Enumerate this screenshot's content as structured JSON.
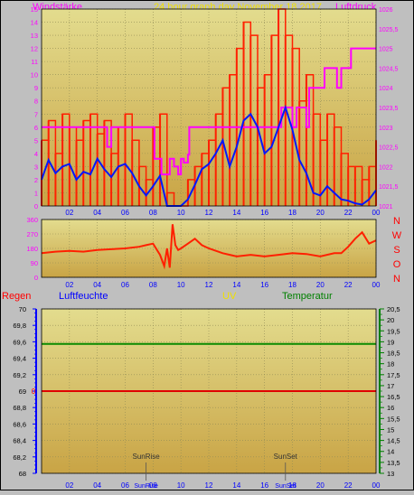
{
  "header": {
    "left_label": "Windstärke",
    "center_title": "24 hour graph day   November 18 2017",
    "right_label": "Luftdruck"
  },
  "colors": {
    "frame": "#000000",
    "plot_top": "#e3dc8e",
    "plot_bottom": "#c9a445",
    "grid": "#8f8a55",
    "wind": "#ff2000",
    "wind_avg": "#0018ff",
    "pressure": "#ff00ff",
    "direction": "#ff2000",
    "humidity_line": "#e00000",
    "temperature_line": "#0a8a00",
    "left_axis": "#0000ff",
    "right_axis": "#008000",
    "header_pink": "#ff00ff",
    "header_yellow": "#f0e000",
    "regen": "#ff0000",
    "luftfeuchte": "#0000ff",
    "uv": "#f0e000",
    "temperatur": "#008000"
  },
  "chart_data": [
    {
      "type": "line",
      "name": "wind-pressure",
      "x_ticks": [
        "02",
        "04",
        "06",
        "08",
        "10",
        "12",
        "14",
        "16",
        "18",
        "20",
        "22",
        "00"
      ],
      "x_range": [
        0,
        24
      ],
      "y_left_ticks": [
        "0",
        "1",
        "2",
        "3",
        "4",
        "5",
        "6",
        "7",
        "8",
        "9",
        "10",
        "11",
        "12",
        "13",
        "14",
        "15"
      ],
      "y_left_range": [
        0,
        15
      ],
      "y_right_ticks": [
        "1021",
        "1021,5",
        "1022",
        "1022,5",
        "1023",
        "1023,5",
        "1024",
        "1024,5",
        "1025",
        "1025,5",
        "1026"
      ],
      "y_right_range": [
        1021,
        1026
      ],
      "series": [
        {
          "key": "wind_gust",
          "axis": "left",
          "x": [
            0,
            0.5,
            1,
            1.5,
            2,
            2.5,
            3,
            3.5,
            4,
            4.5,
            5,
            5.5,
            6,
            6.5,
            7,
            7.5,
            8,
            8.5,
            9,
            9.5,
            10,
            10.5,
            11,
            11.5,
            12,
            12.5,
            13,
            13.5,
            14,
            14.5,
            15,
            15.5,
            16,
            16.5,
            17,
            17.5,
            18,
            18.5,
            19,
            19.5,
            20,
            20.5,
            21,
            21.5,
            22,
            22.5,
            23,
            23.5,
            24
          ],
          "values": [
            5,
            6.5,
            4,
            7,
            6,
            5,
            6.5,
            7,
            5.5,
            6.5,
            4,
            6,
            7,
            5,
            3,
            2,
            6,
            7,
            1,
            0,
            0,
            2,
            3,
            4,
            5,
            7,
            9,
            10,
            12,
            14,
            13,
            9,
            10,
            13,
            15,
            13,
            12,
            8,
            10,
            7,
            5,
            7,
            6,
            4,
            3,
            3,
            2,
            3,
            5
          ]
        },
        {
          "key": "wind_avg",
          "axis": "left",
          "x": [
            0,
            0.5,
            1,
            1.5,
            2,
            2.5,
            3,
            3.5,
            4,
            4.5,
            5,
            5.5,
            6,
            6.5,
            7,
            7.5,
            8,
            8.5,
            9,
            9.5,
            10,
            10.5,
            11,
            11.5,
            12,
            12.5,
            13,
            13.5,
            14,
            14.5,
            15,
            15.5,
            16,
            16.5,
            17,
            17.5,
            18,
            18.5,
            19,
            19.5,
            20,
            20.5,
            21,
            21.5,
            22,
            22.5,
            23,
            23.5,
            24
          ],
          "values": [
            2,
            3.5,
            2.5,
            3,
            3.2,
            2,
            2.6,
            2.4,
            3.6,
            2.8,
            2.2,
            3,
            3.2,
            2.5,
            1.5,
            0.8,
            1.5,
            2.3,
            0,
            0,
            0,
            0.5,
            1.6,
            2.8,
            3.2,
            4,
            5,
            3,
            4.5,
            6.5,
            7,
            6,
            4,
            4.5,
            6,
            7.5,
            5.8,
            3.5,
            2.5,
            1,
            0.8,
            1.5,
            1,
            0.5,
            0.4,
            0.2,
            0.1,
            0.5,
            1.2
          ]
        },
        {
          "key": "pressure",
          "axis": "right",
          "x": [
            0,
            4.5,
            4.7,
            5,
            5.3,
            8,
            8.1,
            8.5,
            8.6,
            9,
            9.2,
            9.5,
            9.8,
            10,
            10.2,
            10.5,
            10.6,
            14,
            14.5,
            15,
            15.5,
            16,
            16.5,
            17,
            17.2,
            18,
            18.3,
            19,
            19.2,
            19.5,
            20,
            20.3,
            21,
            21.2,
            21.5,
            22,
            22.2,
            22.5,
            23,
            24
          ],
          "values": [
            1023,
            1023,
            1022.5,
            1023,
            1023,
            1023,
            1022.2,
            1022.2,
            1021.8,
            1021.8,
            1022.2,
            1022,
            1021.8,
            1022.2,
            1022.1,
            1022.3,
            1023,
            1023,
            1023,
            1023,
            1023,
            1023,
            1023,
            1023,
            1023.5,
            1023,
            1023.5,
            1023,
            1024,
            1024,
            1024,
            1024.5,
            1024.5,
            1024,
            1024.5,
            1024.5,
            1025,
            1025,
            1025,
            1025
          ]
        }
      ]
    },
    {
      "type": "line",
      "name": "wind-direction",
      "x_ticks": [
        "02",
        "04",
        "06",
        "08",
        "10",
        "12",
        "14",
        "16",
        "18",
        "20",
        "22",
        "00"
      ],
      "x_range": [
        0,
        24
      ],
      "y_ticks": [
        "0",
        "90",
        "180",
        "270",
        "360"
      ],
      "y_range": [
        0,
        360
      ],
      "direction_labels": [
        "N",
        "W",
        "S",
        "O",
        "N"
      ],
      "series": [
        {
          "key": "direction",
          "x": [
            0,
            1,
            2,
            3,
            4,
            5,
            6,
            7,
            7.5,
            8,
            8.5,
            8.8,
            9,
            9.2,
            9.4,
            9.6,
            9.8,
            10,
            10.5,
            11,
            11.5,
            12,
            13,
            14,
            15,
            16,
            17,
            18,
            19,
            20,
            21,
            21.5,
            22,
            22.5,
            23,
            23.5,
            24
          ],
          "values": [
            150,
            160,
            165,
            160,
            170,
            175,
            180,
            190,
            200,
            210,
            140,
            70,
            180,
            60,
            330,
            200,
            170,
            180,
            210,
            240,
            200,
            180,
            150,
            130,
            140,
            130,
            140,
            150,
            145,
            130,
            150,
            150,
            190,
            240,
            280,
            210,
            230
          ]
        }
      ]
    },
    {
      "type": "line",
      "name": "rain-humidity-temperature",
      "x_ticks": [
        "02",
        "04",
        "06",
        "08",
        "10",
        "12",
        "14",
        "16",
        "18",
        "20",
        "22",
        "00"
      ],
      "x_range": [
        0,
        24
      ],
      "y_left_ticks": [
        "68",
        "68,2",
        "68,4",
        "68,6",
        "68,8",
        "69",
        "69,2",
        "69,4",
        "69,6",
        "69,8",
        "70"
      ],
      "y_left_range": [
        68,
        70
      ],
      "y_right_ticks": [
        "13",
        "13,5",
        "14",
        "14,5",
        "15",
        "15,5",
        "16",
        "16,5",
        "17",
        "17,5",
        "18",
        "18,5",
        "19",
        "19,5",
        "20",
        "20,5"
      ],
      "y_right_range": [
        13,
        20.5
      ],
      "regen_value_label": "0",
      "series": [
        {
          "key": "luftfeuchte",
          "axis": "left",
          "x": [
            0,
            24
          ],
          "values": [
            69,
            69
          ]
        },
        {
          "key": "temperatur",
          "axis": "right",
          "x": [
            0,
            24
          ],
          "values": [
            18.9,
            18.9
          ]
        }
      ],
      "annotations": {
        "sunrise": "SunRise",
        "sunset": "SunSet",
        "sunrise_x": 7.5,
        "sunset_x": 17.5
      }
    }
  ],
  "legend3": {
    "regen": "Regen",
    "luftfeuchte": "Luftfeuchte",
    "uv": "UV",
    "temperatur": "Temperatur"
  }
}
